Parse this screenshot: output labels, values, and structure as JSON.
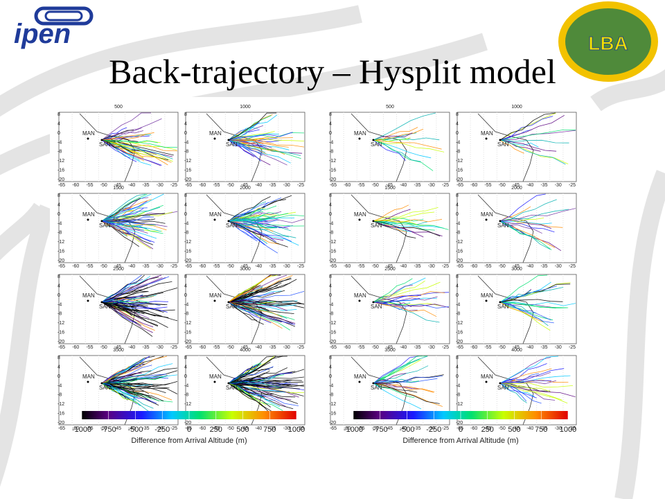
{
  "logos": {
    "left": "ipen",
    "right": "LBA"
  },
  "title": "Back-trajectory – Hysplit model",
  "map": {
    "yticks": [
      "8",
      "4",
      "0",
      "-4",
      "-8",
      "-12",
      "-16",
      "-20"
    ],
    "xticks": [
      "-65",
      "-60",
      "-55",
      "-50",
      "-45",
      "-40",
      "-35",
      "-30",
      "-25"
    ],
    "sites": [
      "MAN",
      "SAN"
    ]
  },
  "figures": [
    {
      "panels": [
        "500",
        "1000",
        "1500",
        "2000",
        "2500",
        "3000",
        "3500",
        "4000"
      ],
      "colorbar": {
        "ticks": [
          -1000,
          -750,
          -500,
          -250,
          0,
          250,
          500,
          750,
          1000
        ],
        "label": "Difference from Arrival Altitude (m)"
      }
    },
    {
      "panels": [
        "500",
        "1000",
        "1500",
        "2000",
        "2500",
        "3000",
        "3500",
        "4000"
      ],
      "colorbar": {
        "ticks": [
          -1000,
          -750,
          -500,
          -250,
          0,
          250,
          500,
          750,
          1000
        ],
        "label": "Difference from Arrival Altitude (m)"
      }
    }
  ]
}
